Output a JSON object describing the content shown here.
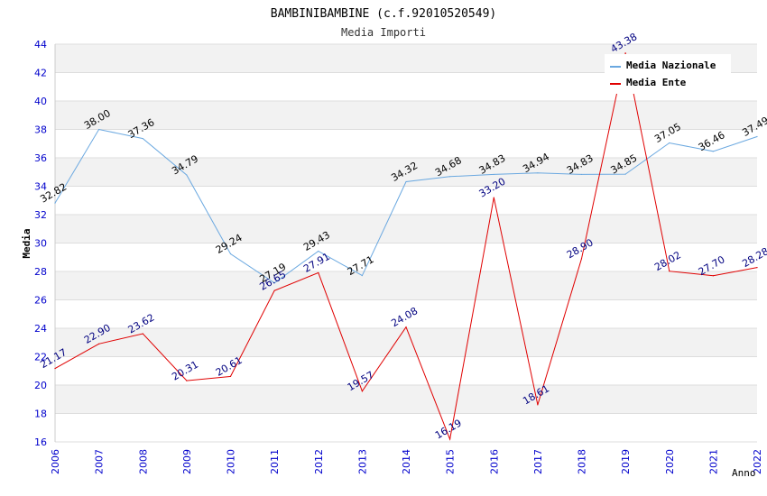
{
  "chart_data": {
    "type": "line",
    "title": "BAMBINIBAMBINE (c.f.92010520549)",
    "subtitle": "Media Importi",
    "xlabel": "Anno",
    "ylabel": "Media",
    "ylim": [
      16,
      44
    ],
    "ytick_step": 2,
    "categories": [
      "2006",
      "2007",
      "2008",
      "2009",
      "2010",
      "2011",
      "2012",
      "2013",
      "2014",
      "2015",
      "2016",
      "2017",
      "2018",
      "2019",
      "2020",
      "2021",
      "2022"
    ],
    "series": [
      {
        "name": "Media Nazionale",
        "color": "#6aa8e0",
        "label_color": "#000000",
        "values": [
          32.82,
          38.0,
          37.36,
          34.79,
          29.24,
          27.19,
          29.43,
          27.71,
          34.32,
          34.68,
          34.83,
          34.94,
          34.83,
          34.85,
          37.05,
          36.46,
          37.49
        ]
      },
      {
        "name": "Media Ente",
        "color": "#e00000",
        "label_color": "#000080",
        "values": [
          21.17,
          22.9,
          23.62,
          20.31,
          20.61,
          26.65,
          27.91,
          19.57,
          24.08,
          16.19,
          33.2,
          18.61,
          28.9,
          43.38,
          28.02,
          27.7,
          28.28
        ]
      }
    ],
    "grid": true,
    "legend_position": "top-right"
  }
}
